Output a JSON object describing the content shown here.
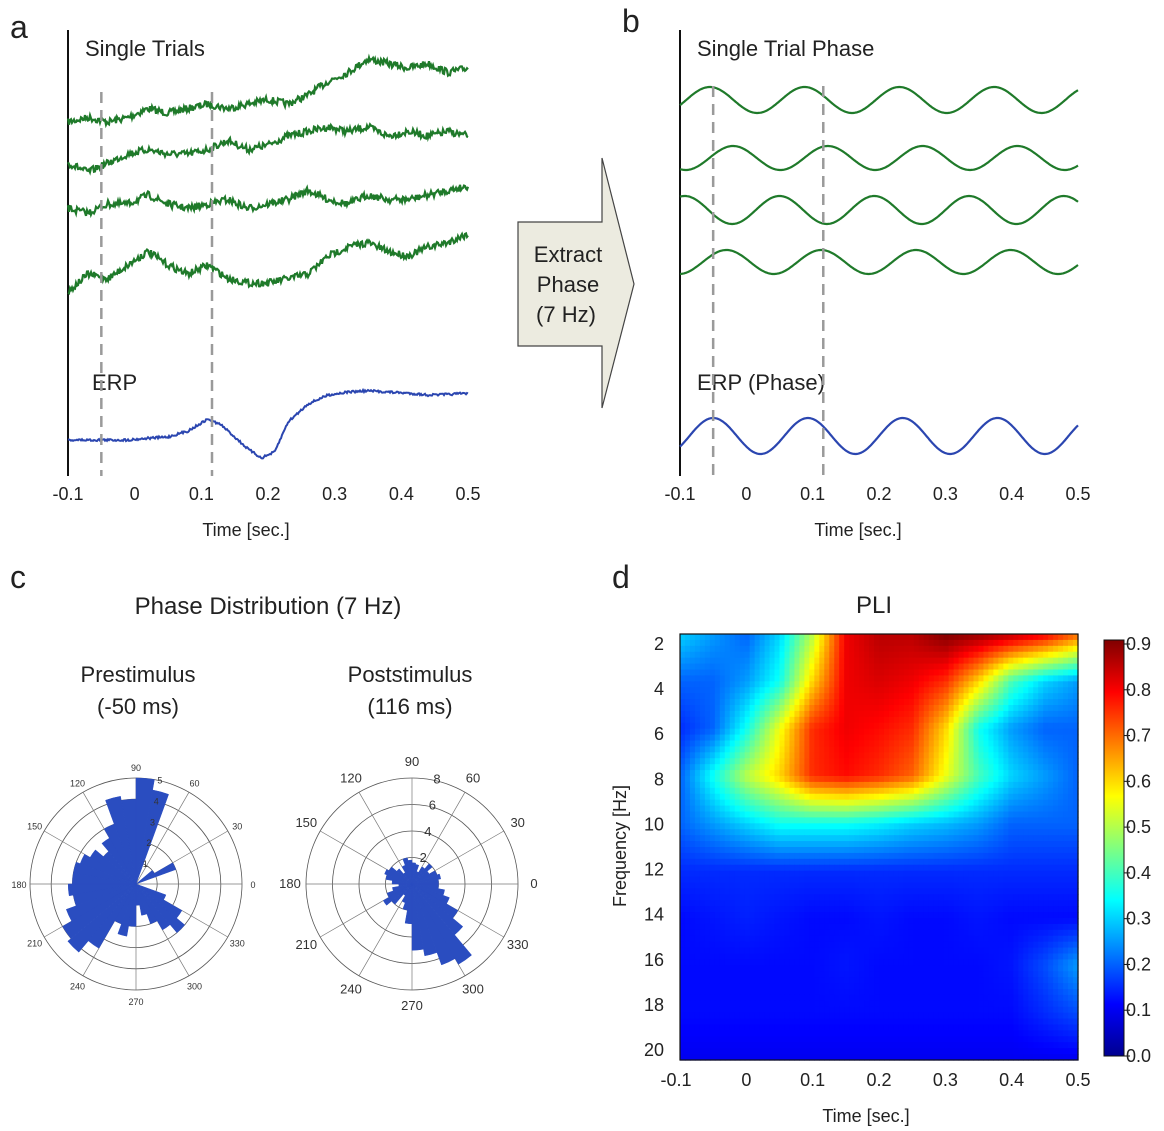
{
  "panels": {
    "a": {
      "letter": "a",
      "top_label": "Single Trials",
      "erp_label": "ERP",
      "xlabel": "Time [sec.]"
    },
    "b": {
      "letter": "b",
      "top_label": "Single Trial Phase",
      "erp_label": "ERP (Phase)",
      "xlabel": "Time [sec.]"
    },
    "c": {
      "letter": "c",
      "title": "Phase Distribution (7 Hz)",
      "left_title_1": "Prestimulus",
      "left_title_2": "(-50 ms)",
      "right_title_1": "Poststimulus",
      "right_title_2": "(116 ms)"
    },
    "d": {
      "letter": "d",
      "title": "PLI",
      "xlabel": "Time [sec.]",
      "ylabel": "Frequency [Hz]"
    }
  },
  "arrow": {
    "line1": "Extract",
    "line2": "Phase",
    "line3": "(7 Hz)"
  },
  "colors": {
    "trial": "#1f7a2a",
    "erp": "#2b46b0",
    "dash": "#9a9a9a",
    "rose": "#2a4dc0",
    "arrow_fill": "#ecebe0"
  },
  "chart_data": [
    {
      "id": "a",
      "type": "line",
      "x_ticks": [
        "-0.1",
        "0",
        "0.1",
        "0.2",
        "0.3",
        "0.4",
        "0.5"
      ],
      "xlim": [
        -0.1,
        0.5
      ],
      "markers_sec": [
        -0.05,
        0.116
      ],
      "series": [
        {
          "group": "trial",
          "x": [
            -0.1,
            -0.07,
            -0.04,
            -0.01,
            0.02,
            0.05,
            0.08,
            0.11,
            0.14,
            0.17,
            0.2,
            0.23,
            0.26,
            0.29,
            0.32,
            0.35,
            0.38,
            0.41,
            0.44,
            0.47,
            0.5
          ],
          "y": [
            0,
            0.1,
            0,
            0.1,
            0.3,
            0.2,
            0.3,
            0.4,
            0.3,
            0.4,
            0.5,
            0.4,
            0.6,
            0.9,
            1.1,
            1.4,
            1.3,
            1.2,
            1.3,
            1.1,
            1.2
          ]
        },
        {
          "group": "trial",
          "x": [
            -0.1,
            -0.07,
            -0.04,
            -0.01,
            0.02,
            0.05,
            0.08,
            0.11,
            0.14,
            0.17,
            0.2,
            0.23,
            0.26,
            0.29,
            0.32,
            0.35,
            0.38,
            0.41,
            0.44,
            0.47,
            0.5
          ],
          "y": [
            0.2,
            0,
            0.2,
            0.4,
            0.5,
            0.4,
            0.4,
            0.5,
            0.7,
            0.5,
            0.6,
            0.8,
            0.9,
            1.0,
            0.9,
            1.0,
            0.8,
            0.9,
            0.8,
            0.9,
            0.8
          ]
        },
        {
          "group": "trial",
          "x": [
            -0.1,
            -0.07,
            -0.04,
            -0.01,
            0.02,
            0.05,
            0.08,
            0.11,
            0.14,
            0.17,
            0.2,
            0.23,
            0.26,
            0.29,
            0.32,
            0.35,
            0.38,
            0.41,
            0.44,
            0.47,
            0.5
          ],
          "y": [
            0.3,
            0.2,
            0.4,
            0.4,
            0.6,
            0.4,
            0.3,
            0.4,
            0.5,
            0.3,
            0.4,
            0.5,
            0.7,
            0.5,
            0.4,
            0.6,
            0.5,
            0.5,
            0.6,
            0.7,
            0.8
          ]
        },
        {
          "group": "trial",
          "x": [
            -0.1,
            -0.07,
            -0.04,
            -0.01,
            0.02,
            0.05,
            0.08,
            0.11,
            0.14,
            0.17,
            0.2,
            0.23,
            0.26,
            0.29,
            0.32,
            0.35,
            0.38,
            0.41,
            0.44,
            0.47,
            0.5
          ],
          "y": [
            0,
            0.4,
            0.3,
            0.6,
            0.9,
            0.6,
            0.4,
            0.6,
            0.3,
            0.2,
            0.2,
            0.3,
            0.4,
            0.8,
            1.0,
            1.1,
            0.9,
            0.8,
            1.0,
            1.1,
            1.3
          ]
        },
        {
          "group": "erp",
          "x": [
            -0.1,
            -0.07,
            -0.04,
            -0.01,
            0.02,
            0.05,
            0.08,
            0.11,
            0.13,
            0.15,
            0.17,
            0.19,
            0.21,
            0.23,
            0.26,
            0.29,
            0.32,
            0.35,
            0.38,
            0.41,
            0.44,
            0.47,
            0.5
          ],
          "y": [
            0,
            0,
            0,
            0,
            0.03,
            0.05,
            0.15,
            0.35,
            0.25,
            0.05,
            -0.15,
            -0.3,
            -0.2,
            0.3,
            0.6,
            0.75,
            0.8,
            0.82,
            0.8,
            0.78,
            0.75,
            0.76,
            0.78
          ]
        }
      ]
    },
    {
      "id": "b",
      "type": "line",
      "x_ticks": [
        "-0.1",
        "0",
        "0.1",
        "0.2",
        "0.3",
        "0.4",
        "0.5"
      ],
      "xlim": [
        -0.1,
        0.5
      ],
      "markers_sec": [
        -0.05,
        0.116
      ],
      "series": [
        {
          "group": "trial",
          "freq_hz": 7,
          "phase_peak_sec": -0.055
        },
        {
          "group": "trial",
          "freq_hz": 7,
          "phase_peak_sec": -0.02
        },
        {
          "group": "trial",
          "freq_hz": 7,
          "phase_peak_sec": 0.05
        },
        {
          "group": "trial",
          "freq_hz": 7,
          "phase_peak_sec": -0.03
        },
        {
          "group": "erp",
          "freq_hz": 7,
          "phase_peak_sec": -0.05
        }
      ]
    },
    {
      "id": "c_pre",
      "type": "polar_bar",
      "rlim": [
        0,
        5
      ],
      "angle_labels": [
        "0",
        "30",
        "60",
        "90",
        "120",
        "150",
        "180",
        "210",
        "240",
        "270",
        "300",
        "330"
      ],
      "r_tick_labels": [
        "1",
        "2",
        "3",
        "4",
        "5"
      ],
      "bin_center_deg": [
        5,
        15,
        25,
        35,
        45,
        55,
        65,
        75,
        85,
        95,
        105,
        115,
        125,
        135,
        145,
        155,
        165,
        175,
        185,
        195,
        205,
        215,
        225,
        235,
        245,
        255,
        265,
        275,
        285,
        295,
        305,
        315,
        325,
        335,
        345,
        355
      ],
      "counts": [
        0,
        0,
        2,
        1,
        0,
        0,
        0,
        4.5,
        5,
        4,
        4.2,
        3,
        2.5,
        2,
        2.5,
        2.8,
        3,
        3,
        3.2,
        3,
        3.5,
        4,
        4.2,
        3.5,
        2,
        2.5,
        2,
        1,
        1.5,
        2,
        2.5,
        3,
        2.5,
        1.5,
        0,
        0
      ]
    },
    {
      "id": "c_post",
      "type": "polar_bar",
      "rlim": [
        0,
        8
      ],
      "angle_labels": [
        "0",
        "30",
        "60",
        "90",
        "120",
        "150",
        "180",
        "210",
        "240",
        "270",
        "300",
        "330"
      ],
      "r_tick_labels": [
        "2",
        "4",
        "6",
        "8"
      ],
      "bin_center_deg": [
        5,
        15,
        25,
        35,
        45,
        55,
        65,
        75,
        85,
        95,
        105,
        115,
        125,
        135,
        145,
        155,
        165,
        175,
        185,
        195,
        205,
        215,
        225,
        235,
        245,
        255,
        265,
        275,
        285,
        295,
        305,
        315,
        325,
        335,
        345,
        355
      ],
      "counts": [
        2,
        2.2,
        2,
        1.5,
        2,
        1.5,
        1,
        1.5,
        1.6,
        1.8,
        2,
        1.5,
        1,
        1.5,
        2,
        2.2,
        2,
        1.5,
        1,
        1.5,
        2,
        2.5,
        2,
        1,
        1.5,
        2,
        3,
        5,
        5.5,
        6.5,
        7,
        5,
        4,
        3,
        2.5,
        2
      ]
    },
    {
      "id": "d",
      "type": "heatmap",
      "x_ticks": [
        "-0.1",
        "0",
        "0.1",
        "0.2",
        "0.3",
        "0.4",
        "0.5"
      ],
      "y_ticks": [
        "2",
        "4",
        "6",
        "8",
        "10",
        "12",
        "14",
        "16",
        "18",
        "20"
      ],
      "xlim": [
        -0.1,
        0.5
      ],
      "ylim": [
        2,
        20
      ],
      "colorbar_ticks": [
        "0.0",
        "0.1",
        "0.2",
        "0.3",
        "0.4",
        "0.5",
        "0.6",
        "0.7",
        "0.8",
        "0.9"
      ],
      "clim": [
        0,
        0.9
      ],
      "colormap": "jet",
      "time_sec": [
        -0.1,
        -0.05,
        0,
        0.05,
        0.1,
        0.15,
        0.2,
        0.25,
        0.3,
        0.35,
        0.4,
        0.45,
        0.5
      ],
      "freq_hz": [
        2,
        4,
        6,
        8,
        10,
        12,
        14,
        16,
        18,
        20
      ],
      "values": [
        [
          0.3,
          0.25,
          0.2,
          0.3,
          0.5,
          0.8,
          0.85,
          0.85,
          0.9,
          0.88,
          0.85,
          0.8,
          0.7
        ],
        [
          0.2,
          0.2,
          0.25,
          0.35,
          0.6,
          0.8,
          0.82,
          0.8,
          0.75,
          0.6,
          0.4,
          0.3,
          0.25
        ],
        [
          0.15,
          0.2,
          0.35,
          0.55,
          0.75,
          0.8,
          0.78,
          0.75,
          0.6,
          0.35,
          0.25,
          0.2,
          0.2
        ],
        [
          0.2,
          0.35,
          0.5,
          0.6,
          0.75,
          0.78,
          0.75,
          0.7,
          0.55,
          0.4,
          0.3,
          0.25,
          0.2
        ],
        [
          0.2,
          0.25,
          0.3,
          0.35,
          0.35,
          0.35,
          0.33,
          0.3,
          0.28,
          0.25,
          0.2,
          0.2,
          0.2
        ],
        [
          0.15,
          0.15,
          0.15,
          0.15,
          0.15,
          0.15,
          0.15,
          0.15,
          0.15,
          0.15,
          0.15,
          0.15,
          0.15
        ],
        [
          0.12,
          0.13,
          0.14,
          0.13,
          0.12,
          0.12,
          0.13,
          0.12,
          0.12,
          0.13,
          0.12,
          0.12,
          0.12
        ],
        [
          0.12,
          0.12,
          0.12,
          0.12,
          0.12,
          0.13,
          0.12,
          0.12,
          0.12,
          0.12,
          0.13,
          0.18,
          0.25
        ],
        [
          0.12,
          0.12,
          0.12,
          0.12,
          0.12,
          0.12,
          0.12,
          0.12,
          0.12,
          0.12,
          0.12,
          0.15,
          0.18
        ],
        [
          0.1,
          0.1,
          0.1,
          0.1,
          0.1,
          0.1,
          0.1,
          0.1,
          0.1,
          0.1,
          0.1,
          0.1,
          0.1
        ]
      ]
    }
  ]
}
